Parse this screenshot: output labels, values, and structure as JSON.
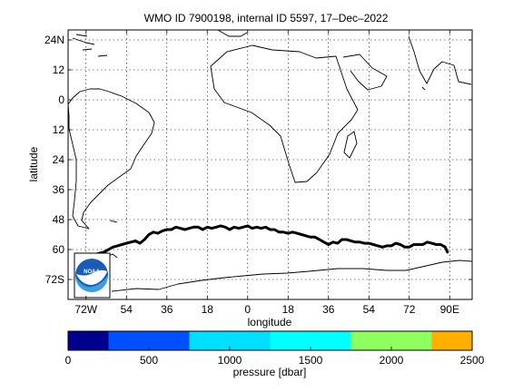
{
  "title": "WMO ID 7900198, internal ID 5597, 17–Dec–2022",
  "map": {
    "xlabel": "longitude",
    "ylabel": "latitude",
    "lon_range": [
      -80,
      100
    ],
    "lat_range": [
      -80,
      28
    ],
    "lon_ticks": [
      {
        "value": -72,
        "label": "72W"
      },
      {
        "value": -54,
        "label": "54"
      },
      {
        "value": -36,
        "label": "36"
      },
      {
        "value": -18,
        "label": "18"
      },
      {
        "value": 0,
        "label": "0"
      },
      {
        "value": 18,
        "label": "18"
      },
      {
        "value": 36,
        "label": "36"
      },
      {
        "value": 54,
        "label": "54"
      },
      {
        "value": 72,
        "label": "72"
      },
      {
        "value": 90,
        "label": "90E"
      }
    ],
    "lat_ticks": [
      {
        "value": 24,
        "label": "24N"
      },
      {
        "value": 12,
        "label": "12"
      },
      {
        "value": 0,
        "label": "0"
      },
      {
        "value": -12,
        "label": "12"
      },
      {
        "value": -24,
        "label": "24"
      },
      {
        "value": -36,
        "label": "36"
      },
      {
        "value": -48,
        "label": "48"
      },
      {
        "value": -60,
        "label": "60"
      },
      {
        "value": -72,
        "label": "72S"
      }
    ],
    "grid": true,
    "logo_text": "NOAA",
    "trajectory": [
      [
        -72,
        -64
      ],
      [
        -70,
        -63
      ],
      [
        -68,
        -62
      ],
      [
        -66,
        -61.5
      ],
      [
        -64,
        -61
      ],
      [
        -62,
        -60
      ],
      [
        -60,
        -59
      ],
      [
        -58,
        -58.5
      ],
      [
        -56,
        -58
      ],
      [
        -54,
        -57.5
      ],
      [
        -52,
        -57
      ],
      [
        -50,
        -56.5
      ],
      [
        -48,
        -57.5
      ],
      [
        -46,
        -56
      ],
      [
        -44,
        -54
      ],
      [
        -42,
        -53
      ],
      [
        -40,
        -53.5
      ],
      [
        -38,
        -52.5
      ],
      [
        -36,
        -52
      ],
      [
        -34,
        -52
      ],
      [
        -32,
        -51
      ],
      [
        -30,
        -51.5
      ],
      [
        -28,
        -52
      ],
      [
        -26,
        -51.5
      ],
      [
        -24,
        -51
      ],
      [
        -22,
        -51
      ],
      [
        -20,
        -52
      ],
      [
        -18,
        -51
      ],
      [
        -16,
        -51.5
      ],
      [
        -14,
        -51
      ],
      [
        -12,
        -50.5
      ],
      [
        -10,
        -51
      ],
      [
        -8,
        -52
      ],
      [
        -6,
        -51
      ],
      [
        -4,
        -51.5
      ],
      [
        -2,
        -51
      ],
      [
        0,
        -50.5
      ],
      [
        2,
        -51.5
      ],
      [
        4,
        -51
      ],
      [
        6,
        -51.5
      ],
      [
        8,
        -51
      ],
      [
        10,
        -52
      ],
      [
        12,
        -52
      ],
      [
        14,
        -53
      ],
      [
        16,
        -53
      ],
      [
        18,
        -53.5
      ],
      [
        20,
        -53
      ],
      [
        22,
        -53.5
      ],
      [
        24,
        -54
      ],
      [
        26,
        -54.5
      ],
      [
        28,
        -55
      ],
      [
        30,
        -55
      ],
      [
        32,
        -56
      ],
      [
        34,
        -57
      ],
      [
        36,
        -58
      ],
      [
        38,
        -57
      ],
      [
        40,
        -57.5
      ],
      [
        42,
        -56
      ],
      [
        44,
        -56
      ],
      [
        46,
        -56.5
      ],
      [
        48,
        -57
      ],
      [
        50,
        -57
      ],
      [
        52,
        -57.5
      ],
      [
        54,
        -57.5
      ],
      [
        56,
        -58
      ],
      [
        58,
        -58.5
      ],
      [
        60,
        -59
      ],
      [
        62,
        -58.5
      ],
      [
        64,
        -58.5
      ],
      [
        66,
        -57.5
      ],
      [
        68,
        -58
      ],
      [
        70,
        -59
      ],
      [
        72,
        -59
      ],
      [
        74,
        -58
      ],
      [
        76,
        -58
      ],
      [
        78,
        -58
      ],
      [
        80,
        -57
      ],
      [
        82,
        -57.5
      ],
      [
        84,
        -58
      ],
      [
        86,
        -58
      ],
      [
        88,
        -59
      ],
      [
        89,
        -61
      ]
    ]
  },
  "colorbar": {
    "label": "pressure [dbar]",
    "ticks": [
      0,
      500,
      1000,
      1500,
      2000,
      2500
    ],
    "range": [
      0,
      2500
    ],
    "segments": [
      {
        "from": 0,
        "to": 250,
        "color": "#00008f"
      },
      {
        "from": 250,
        "to": 750,
        "color": "#0050ff"
      },
      {
        "from": 750,
        "to": 1250,
        "color": "#00dfff"
      },
      {
        "from": 1250,
        "to": 1750,
        "color": "#00ffff"
      },
      {
        "from": 1750,
        "to": 2250,
        "color": "#8fff5f"
      },
      {
        "from": 2250,
        "to": 2500,
        "color": "#ffaf00"
      }
    ]
  }
}
